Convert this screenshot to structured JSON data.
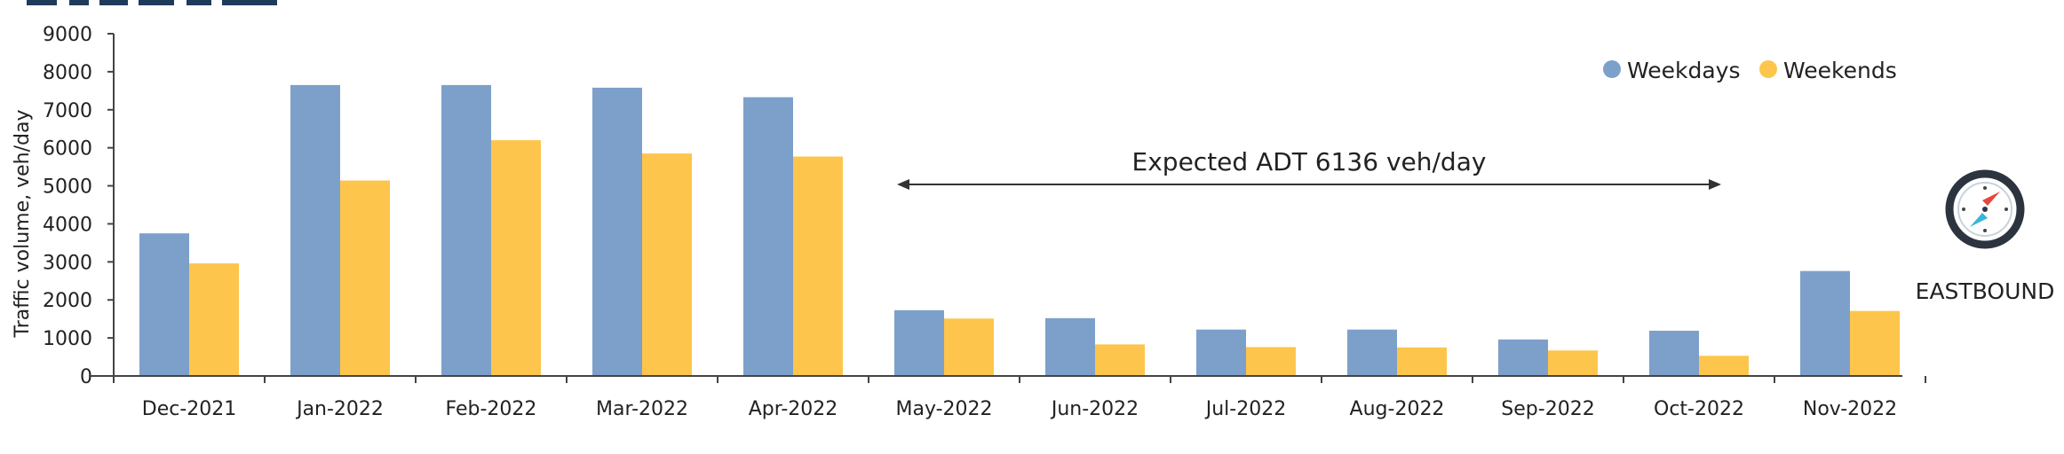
{
  "chart_data": {
    "type": "bar",
    "categories": [
      "Dec-2021",
      "Jan-2022",
      "Feb-2022",
      "Mar-2022",
      "Apr-2022",
      "May-2022",
      "Jun-2022",
      "Jul-2022",
      "Aug-2022",
      "Sep-2022",
      "Oct-2022",
      "Nov-2022"
    ],
    "series": [
      {
        "name": "Weekdays",
        "values": [
          3750,
          7650,
          7650,
          7580,
          7330,
          1730,
          1520,
          1220,
          1220,
          960,
          1190,
          2760
        ],
        "color": "#7da0cb"
      },
      {
        "name": "Weekends",
        "values": [
          2960,
          5140,
          6200,
          5850,
          5770,
          1510,
          830,
          760,
          750,
          670,
          530,
          1710
        ],
        "color": "#fdc54c"
      }
    ],
    "ylabel": "Traffic volume, veh/day",
    "ylim": [
      0,
      9000
    ],
    "yticks": [
      0,
      1000,
      2000,
      3000,
      4000,
      5000,
      6000,
      7000,
      8000,
      9000
    ],
    "grid": false,
    "legend": "top-right",
    "annotation": {
      "text": "Expected ADT 6136 veh/day",
      "from": "May-2022",
      "to": "Oct-2022"
    }
  },
  "direction": {
    "label": "EASTBOUND",
    "icon": "compass-icon"
  }
}
